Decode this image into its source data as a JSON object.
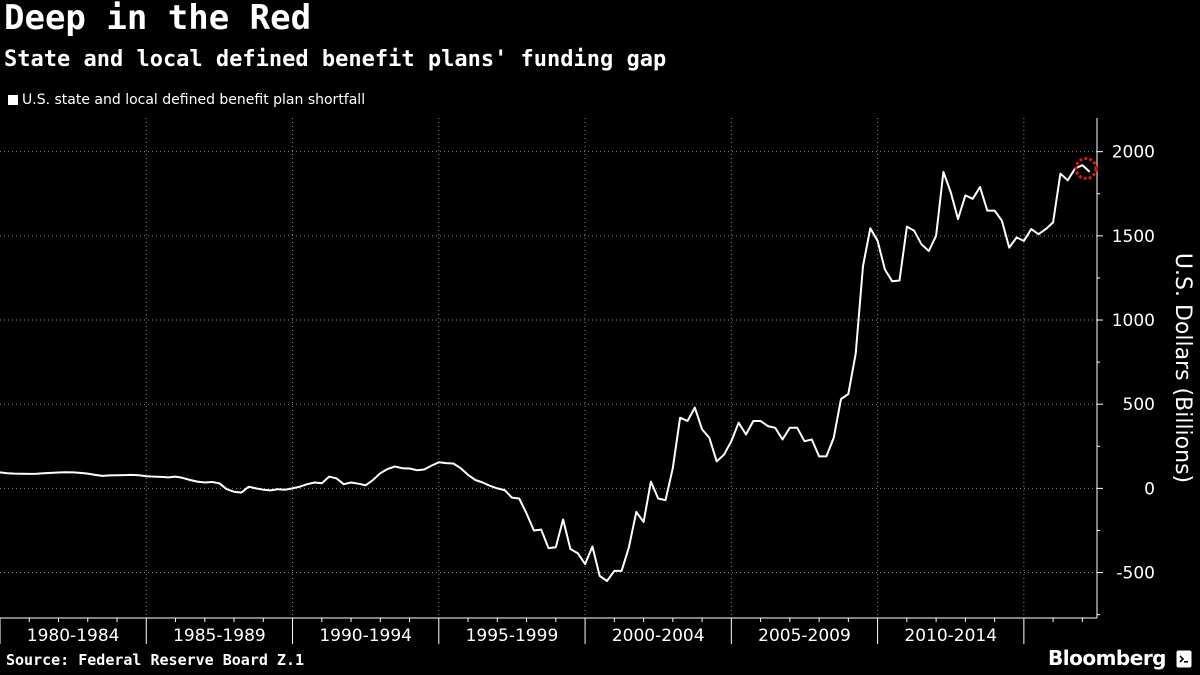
{
  "header": {
    "title": "Deep in the Red",
    "subtitle": "State and local defined benefit plans' funding gap"
  },
  "footer": {
    "source": "Source: Federal Reserve Board Z.1",
    "brand": "Bloomberg"
  },
  "icons": {
    "brand": "bloomberg-terminal-icon",
    "last-point-marker": "highlight-circle-icon"
  },
  "colors": {
    "background": "#000000",
    "line": "#ffffff",
    "grid": "#8a8a8a",
    "marker": "#d81818"
  },
  "chart_data": {
    "type": "line",
    "title": "Deep in the Red",
    "subtitle": "State and local defined benefit plans' funding gap",
    "ylabel": "U.S. Dollars (Billions)",
    "xlabel": "",
    "y_axis_position": "right",
    "ylim": [
      -770,
      2200
    ],
    "y_ticks": [
      -500,
      0,
      500,
      1000,
      1500,
      2000
    ],
    "x_range": [
      1980.0,
      2017.5
    ],
    "x_tick_labels": [
      "1980-1984",
      "1985-1989",
      "1990-1994",
      "1995-1999",
      "2000-2004",
      "2005-2009",
      "2010-2014"
    ],
    "x_tick_label_starts": [
      1980,
      1985,
      1990,
      1995,
      2000,
      2005,
      2010
    ],
    "grid": true,
    "legend": "top-left",
    "series": [
      {
        "name": "U.S. state and local defined benefit plan shortfall",
        "highlight_last": true,
        "points": [
          [
            1980.0,
            95
          ],
          [
            1980.25,
            90
          ],
          [
            1980.5,
            88
          ],
          [
            1980.75,
            87
          ],
          [
            1981.0,
            86
          ],
          [
            1981.25,
            87
          ],
          [
            1981.5,
            90
          ],
          [
            1981.75,
            92
          ],
          [
            1982.0,
            94
          ],
          [
            1982.25,
            96
          ],
          [
            1982.5,
            95
          ],
          [
            1982.75,
            92
          ],
          [
            1983.0,
            88
          ],
          [
            1983.25,
            80
          ],
          [
            1983.5,
            74
          ],
          [
            1983.75,
            77
          ],
          [
            1984.0,
            78
          ],
          [
            1984.25,
            79
          ],
          [
            1984.5,
            80
          ],
          [
            1984.75,
            78
          ],
          [
            1985.0,
            72
          ],
          [
            1985.25,
            70
          ],
          [
            1985.5,
            68
          ],
          [
            1985.75,
            65
          ],
          [
            1986.0,
            70
          ],
          [
            1986.25,
            62
          ],
          [
            1986.5,
            50
          ],
          [
            1986.75,
            40
          ],
          [
            1987.0,
            35
          ],
          [
            1987.25,
            38
          ],
          [
            1987.5,
            30
          ],
          [
            1987.75,
            -5
          ],
          [
            1988.0,
            -20
          ],
          [
            1988.25,
            -25
          ],
          [
            1988.5,
            10
          ],
          [
            1988.75,
            0
          ],
          [
            1989.0,
            -8
          ],
          [
            1989.25,
            -12
          ],
          [
            1989.5,
            -5
          ],
          [
            1989.75,
            -8
          ],
          [
            1990.0,
            0
          ],
          [
            1990.25,
            10
          ],
          [
            1990.5,
            25
          ],
          [
            1990.75,
            35
          ],
          [
            1991.0,
            30
          ],
          [
            1991.25,
            70
          ],
          [
            1991.5,
            60
          ],
          [
            1991.75,
            25
          ],
          [
            1992.0,
            35
          ],
          [
            1992.25,
            28
          ],
          [
            1992.5,
            18
          ],
          [
            1992.75,
            50
          ],
          [
            1993.0,
            90
          ],
          [
            1993.25,
            115
          ],
          [
            1993.5,
            130
          ],
          [
            1993.75,
            120
          ],
          [
            1994.0,
            118
          ],
          [
            1994.25,
            108
          ],
          [
            1994.5,
            112
          ],
          [
            1994.75,
            135
          ],
          [
            1995.0,
            155
          ],
          [
            1995.25,
            150
          ],
          [
            1995.5,
            148
          ],
          [
            1995.75,
            120
          ],
          [
            1996.0,
            80
          ],
          [
            1996.25,
            50
          ],
          [
            1996.5,
            35
          ],
          [
            1996.75,
            15
          ],
          [
            1997.0,
            0
          ],
          [
            1997.25,
            -10
          ],
          [
            1997.5,
            -55
          ],
          [
            1997.75,
            -60
          ],
          [
            1998.0,
            -150
          ],
          [
            1998.25,
            -250
          ],
          [
            1998.5,
            -245
          ],
          [
            1998.75,
            -355
          ],
          [
            1999.0,
            -350
          ],
          [
            1999.25,
            -185
          ],
          [
            1999.5,
            -360
          ],
          [
            1999.75,
            -385
          ],
          [
            2000.0,
            -450
          ],
          [
            2000.25,
            -345
          ],
          [
            2000.5,
            -520
          ],
          [
            2000.75,
            -550
          ],
          [
            2001.0,
            -490
          ],
          [
            2001.25,
            -490
          ],
          [
            2001.5,
            -350
          ],
          [
            2001.75,
            -140
          ],
          [
            2002.0,
            -200
          ],
          [
            2002.25,
            40
          ],
          [
            2002.5,
            -60
          ],
          [
            2002.75,
            -70
          ],
          [
            2003.0,
            120
          ],
          [
            2003.25,
            420
          ],
          [
            2003.5,
            400
          ],
          [
            2003.75,
            480
          ],
          [
            2004.0,
            350
          ],
          [
            2004.25,
            300
          ],
          [
            2004.5,
            160
          ],
          [
            2004.75,
            200
          ],
          [
            2005.0,
            280
          ],
          [
            2005.25,
            390
          ],
          [
            2005.5,
            320
          ],
          [
            2005.75,
            400
          ],
          [
            2006.0,
            400
          ],
          [
            2006.25,
            370
          ],
          [
            2006.5,
            360
          ],
          [
            2006.75,
            290
          ],
          [
            2007.0,
            360
          ],
          [
            2007.25,
            360
          ],
          [
            2007.5,
            280
          ],
          [
            2007.75,
            290
          ],
          [
            2008.0,
            190
          ],
          [
            2008.25,
            190
          ],
          [
            2008.5,
            300
          ],
          [
            2008.75,
            530
          ],
          [
            2009.0,
            560
          ],
          [
            2009.25,
            800
          ],
          [
            2009.5,
            1320
          ],
          [
            2009.75,
            1545
          ],
          [
            2010.0,
            1470
          ],
          [
            2010.25,
            1300
          ],
          [
            2010.5,
            1230
          ],
          [
            2010.75,
            1235
          ],
          [
            2011.0,
            1555
          ],
          [
            2011.25,
            1530
          ],
          [
            2011.5,
            1450
          ],
          [
            2011.75,
            1410
          ],
          [
            2012.0,
            1500
          ],
          [
            2012.25,
            1880
          ],
          [
            2012.5,
            1760
          ],
          [
            2012.75,
            1600
          ],
          [
            2013.0,
            1740
          ],
          [
            2013.25,
            1720
          ],
          [
            2013.5,
            1790
          ],
          [
            2013.75,
            1650
          ],
          [
            2014.0,
            1650
          ],
          [
            2014.25,
            1590
          ],
          [
            2014.5,
            1430
          ],
          [
            2014.75,
            1490
          ],
          [
            2015.0,
            1470
          ],
          [
            2015.25,
            1540
          ],
          [
            2015.5,
            1510
          ],
          [
            2015.75,
            1540
          ],
          [
            2016.0,
            1580
          ],
          [
            2016.25,
            1870
          ],
          [
            2016.5,
            1830
          ],
          [
            2016.75,
            1900
          ],
          [
            2017.0,
            1920
          ],
          [
            2017.25,
            1880
          ]
        ]
      }
    ]
  }
}
